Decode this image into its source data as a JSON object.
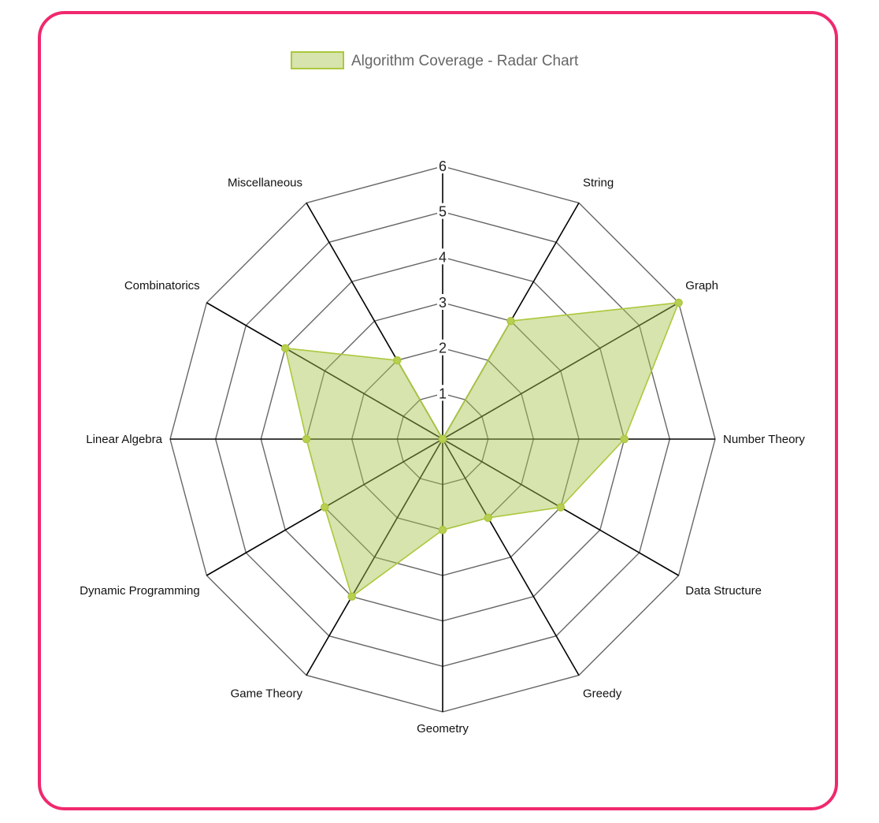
{
  "chart_data": {
    "type": "radar",
    "legend": {
      "label": "Algorithm Coverage - Radar Chart",
      "position": "top"
    },
    "categories": [
      "String",
      "Graph",
      "Number Theory",
      "Data Structure",
      "Greedy",
      "Geometry",
      "Game Theory",
      "Dynamic Programming",
      "Linear Algebra",
      "Combinatorics",
      "Miscellaneous",
      ""
    ],
    "series": [
      {
        "name": "Algorithm Coverage - Radar Chart",
        "values": [
          3,
          6,
          4,
          3,
          2,
          2,
          4,
          3,
          3,
          4,
          2,
          0
        ]
      }
    ],
    "r_range": [
      0,
      6
    ],
    "r_ticks": [
      "1",
      "2",
      "3",
      "4",
      "5",
      "6"
    ],
    "colors": {
      "fill": "rgba(168,196,76,0.46)",
      "stroke": "#abc83c",
      "point": "#b8cf52",
      "grid": "#666666",
      "axis": "#000000",
      "border": "#f0286e"
    }
  }
}
